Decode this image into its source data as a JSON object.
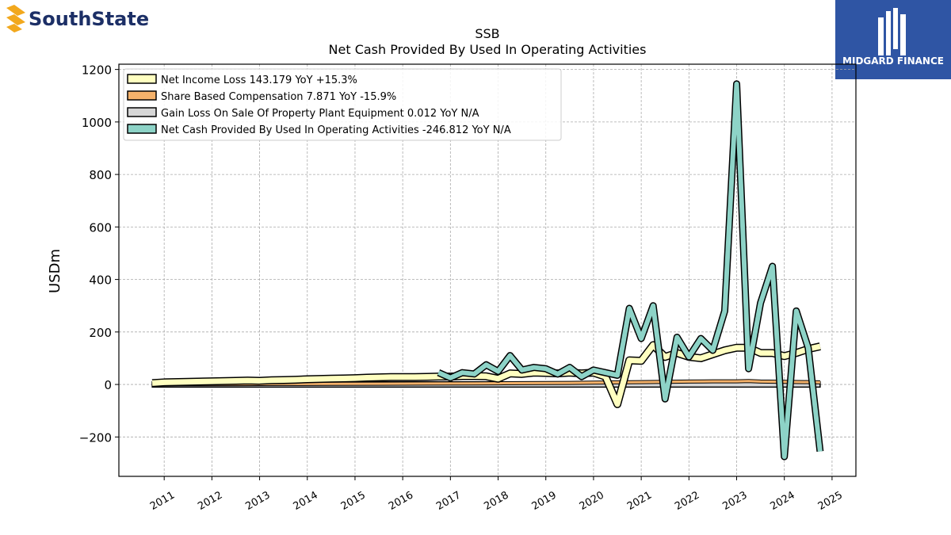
{
  "logos": {
    "left_text": "SouthState",
    "right_text": "MIDGARD FINANCE"
  },
  "colors": {
    "net_income": "#ffffc0",
    "share_based": "#f5b26b",
    "gain_loss": "#d6d6d6",
    "net_cash": "#8dd3c7",
    "logo_left_text": "#1c2f66",
    "logo_left_mark": "#f2a81d",
    "logo_right_bg": "#2f55a4"
  },
  "chart_data": {
    "type": "line",
    "title": "SSB",
    "subtitle": "Net Cash Provided By Used In Operating Activities",
    "xlabel": "",
    "ylabel": "USDm",
    "xlim": [
      2010.05,
      2025.5
    ],
    "ylim": [
      -350,
      1220
    ],
    "yticks": [
      -200,
      0,
      200,
      400,
      600,
      800,
      1000,
      1200
    ],
    "xticks": [
      "2011",
      "2012",
      "2013",
      "2014",
      "2015",
      "2016",
      "2017",
      "2018",
      "2019",
      "2020",
      "2021",
      "2022",
      "2023",
      "2024",
      "2025"
    ],
    "grid": true,
    "legend_position": "top-left",
    "series": [
      {
        "name": "Net Income Loss  143.179 YoY +15.3%",
        "color_key": "net_income",
        "x": [
          2010.75,
          2011.0,
          2011.5,
          2012.0,
          2012.5,
          2012.75,
          2013.0,
          2013.25,
          2013.5,
          2013.75,
          2014.0,
          2014.25,
          2014.5,
          2014.75,
          2015.0,
          2015.25,
          2015.5,
          2015.75,
          2016.0,
          2016.25,
          2016.5,
          2016.75,
          2017.0,
          2017.25,
          2017.5,
          2017.75,
          2018.0,
          2018.25,
          2018.5,
          2018.75,
          2019.0,
          2019.25,
          2019.5,
          2019.75,
          2020.0,
          2020.25,
          2020.5,
          2020.75,
          2021.0,
          2021.25,
          2021.5,
          2021.75,
          2022.0,
          2022.25,
          2022.5,
          2022.75,
          2023.0,
          2023.25,
          2023.5,
          2023.75,
          2024.0,
          2024.25,
          2024.5,
          2024.75
        ],
        "values": [
          5,
          8,
          10,
          12,
          14,
          15,
          14,
          16,
          17,
          18,
          20,
          21,
          22,
          23,
          24,
          26,
          27,
          28,
          28,
          28,
          29,
          30,
          30,
          32,
          32,
          31,
          22,
          42,
          40,
          45,
          44,
          42,
          45,
          42,
          45,
          30,
          -75,
          92,
          90,
          150,
          105,
          120,
          105,
          100,
          115,
          130,
          140,
          140,
          120,
          120,
          108,
          120,
          135,
          145
        ]
      },
      {
        "name": "Share Based Compensation  7.871 YoY -15.9%",
        "color_key": "share_based",
        "x": [
          2010.75,
          2011.5,
          2012.5,
          2013.5,
          2014.5,
          2015.5,
          2016.5,
          2017.5,
          2018.0,
          2018.5,
          2019.0,
          2019.5,
          2020.0,
          2020.5,
          2021.0,
          2021.5,
          2022.0,
          2022.5,
          2023.0,
          2023.25,
          2023.5,
          2024.0,
          2024.5,
          2024.75
        ],
        "values": [
          0.5,
          1,
          1.5,
          2,
          2.5,
          3,
          3.5,
          4,
          4.5,
          5,
          5.5,
          6,
          7,
          8,
          9,
          10,
          11,
          12,
          12,
          13,
          11,
          10,
          9,
          8
        ]
      },
      {
        "name": "Gain Loss On Sale Of Property Plant Equipment  0.012 YoY N/A",
        "color_key": "gain_loss",
        "x": [
          2010.75,
          2024.75
        ],
        "values": [
          0,
          0
        ]
      },
      {
        "name": "Net Cash Provided By Used In Operating Activities  -246.812 YoY N/A",
        "color_key": "net_cash",
        "x": [
          2016.75,
          2017.0,
          2017.25,
          2017.5,
          2017.75,
          2018.0,
          2018.25,
          2018.5,
          2018.75,
          2019.0,
          2019.25,
          2019.5,
          2019.75,
          2020.0,
          2020.25,
          2020.5,
          2020.75,
          2021.0,
          2021.25,
          2021.5,
          2021.75,
          2022.0,
          2022.25,
          2022.5,
          2022.75,
          2023.0,
          2023.25,
          2023.5,
          2023.75,
          2024.0,
          2024.25,
          2024.5,
          2024.75
        ],
        "values": [
          45,
          25,
          45,
          40,
          75,
          50,
          110,
          55,
          65,
          60,
          40,
          65,
          30,
          55,
          45,
          35,
          290,
          175,
          300,
          -55,
          180,
          105,
          175,
          130,
          280,
          1145,
          60,
          310,
          450,
          -275,
          280,
          140,
          -255
        ]
      }
    ]
  }
}
